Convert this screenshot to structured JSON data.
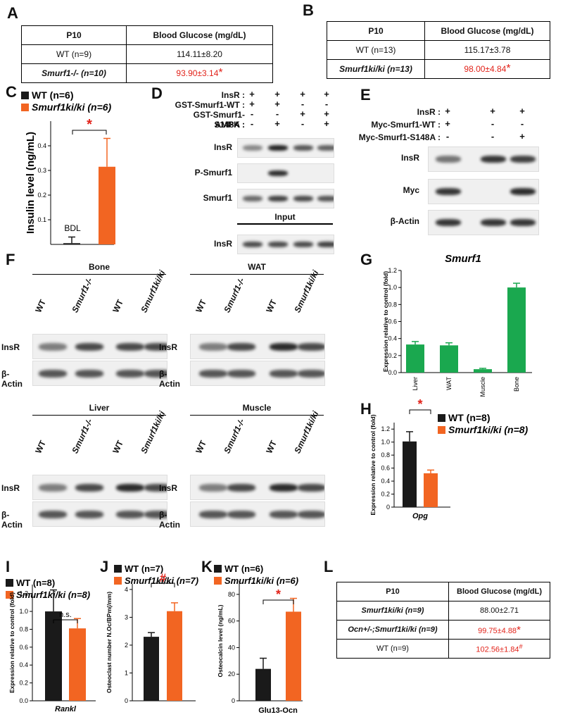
{
  "panels": {
    "A": "A",
    "B": "B",
    "C": "C",
    "D": "D",
    "E": "E",
    "F": "F",
    "G": "G",
    "H": "H",
    "I": "I",
    "J": "J",
    "K": "K",
    "L": "L"
  },
  "tableA": {
    "h1": "P10",
    "h2": "Blood Glucose (mg/dL)",
    "r1c1": "WT (n=9)",
    "r1c2": "114.11±8.20",
    "r2c1": "Smurf1-/- (n=10)",
    "r2c2": "93.90±3.14",
    "r2star": "*"
  },
  "tableB": {
    "h1": "P10",
    "h2": "Blood Glucose (mg/dL)",
    "r1c1": "WT (n=13)",
    "r1c2": "115.17±3.78",
    "r2c1": "Smurf1ki/ki (n=13)",
    "r2c2": "98.00±4.84",
    "r2star": "*"
  },
  "tableL": {
    "h1": "P10",
    "h2": "Blood Glucose (mg/dL)",
    "r1c1": "Smurf1ki/ki (n=9)",
    "r1c2": "88.00±2.71",
    "r2c1": "Ocn+/-;Smurf1ki/ki (n=9)",
    "r2c2": "99.75±4.88",
    "r2star": "*",
    "r3c1": "WT (n=9)",
    "r3c2": "102.56±1.84",
    "r3mark": "#"
  },
  "colors": {
    "wt": "#1a1a1a",
    "ki": "#f26522",
    "green": "#1aa84f",
    "red": "#e2231a"
  },
  "chart_data": [
    {
      "panel": "C",
      "type": "bar",
      "categories": [
        "WT (n=6)",
        "Smurf1ki/ki (n=6)"
      ],
      "values": [
        0.005,
        0.315
      ],
      "errors": [
        0.025,
        0.115
      ],
      "ylabel": "Insulin level (ng/mL)",
      "yticks": [
        0.1,
        0.2,
        0.3,
        0.4
      ],
      "ylim": [
        0,
        0.5
      ],
      "annotations": {
        "bdl": "BDL",
        "sig": "*"
      },
      "legend": [
        "WT (n=6)",
        "Smurf1ki/ki (n=6)"
      ]
    },
    {
      "panel": "G",
      "type": "bar",
      "title": "Smurf1",
      "categories": [
        "Liver",
        "WAT",
        "Muscle",
        "Bone"
      ],
      "values": [
        0.33,
        0.32,
        0.04,
        1.0
      ],
      "errors": [
        0.035,
        0.03,
        0.01,
        0.05
      ],
      "ylabel": "Expression relative to control (fold)",
      "yticks": [
        "0.0",
        "0.2",
        "0.4",
        "0.6",
        "0.8",
        "1.0",
        "1.2"
      ],
      "ylim": [
        0,
        1.2
      ]
    },
    {
      "panel": "H",
      "type": "bar",
      "xlabel": "Opg",
      "values": [
        1.01,
        0.52
      ],
      "errors": [
        0.15,
        0.05
      ],
      "ylabel": "Expression relative to control (fold)",
      "yticks": [
        "0",
        "0.2",
        "0.4",
        "0.6",
        "0.8",
        "1.0",
        "1.2"
      ],
      "ylim": [
        0,
        1.3
      ],
      "legend": [
        "WT (n=8)",
        "Smurf1ki/ki (n=8)"
      ],
      "sig": "*"
    },
    {
      "panel": "I",
      "type": "bar",
      "xlabel": "Rankl",
      "values": [
        1.0,
        0.81
      ],
      "errors": [
        0.24,
        0.11
      ],
      "ylabel": "Expression relative to control (fold)",
      "yticks": [
        "0.0",
        "0.2",
        "0.4",
        "0.6",
        "0.8",
        "1.0",
        "1.2"
      ],
      "ylim": [
        0,
        1.3
      ],
      "legend": [
        "WT (n=8)",
        "Smurf1ki/ki (n=8)"
      ],
      "sig": "n.s."
    },
    {
      "panel": "J",
      "type": "bar",
      "values": [
        2.3,
        3.22
      ],
      "errors": [
        0.15,
        0.3
      ],
      "ylabel": "Osteoclast number N.Oc/BPm(/mm)",
      "yticks": [
        "0",
        "1",
        "2",
        "3",
        "4"
      ],
      "ylim": [
        0,
        4.2
      ],
      "legend": [
        "WT (n=7)",
        "Smurf1ki/ki (n=7)"
      ],
      "sig": "#"
    },
    {
      "panel": "K",
      "type": "bar",
      "xlabel": "Glu13-Ocn",
      "values": [
        24,
        67
      ],
      "errors": [
        8,
        10
      ],
      "ylabel": "Osteocalcin level (ng/mL)",
      "yticks": [
        "0",
        "20",
        "40",
        "60",
        "80"
      ],
      "ylim": [
        0,
        90
      ],
      "legend": [
        "WT (n=6)",
        "Smurf1ki/ki (n=6)"
      ],
      "sig": "*"
    }
  ],
  "blotD": {
    "rows": [
      "InsR :",
      "GST-Smurf1-WT :",
      "GST-Smurf1-S148A :",
      "AMPK :"
    ],
    "signs": [
      [
        "+",
        "+",
        "+",
        "+"
      ],
      [
        "+",
        "+",
        "-",
        "-"
      ],
      [
        "-",
        "-",
        "+",
        "+"
      ],
      [
        "-",
        "+",
        "-",
        "+"
      ]
    ],
    "bands": [
      "InsR",
      "P-Smurf1",
      "Smurf1",
      "InsR"
    ],
    "input": "Input"
  },
  "blotE": {
    "rows": [
      "InsR :",
      "Myc-Smurf1-WT :",
      "Myc-Smurf1-S148A :"
    ],
    "signs": [
      [
        "+",
        "+",
        "+"
      ],
      [
        "+",
        "-",
        "-"
      ],
      [
        "-",
        "-",
        "+"
      ]
    ],
    "bands": [
      "InsR",
      "Myc",
      "β-Actin"
    ]
  },
  "blotF": {
    "tissues": [
      "Bone",
      "WAT",
      "Liver",
      "Muscle"
    ],
    "lanes": [
      "WT",
      "Smurf1-/-",
      "WT",
      "Smurf1ki/ki"
    ],
    "bands": [
      "InsR",
      "β-Actin"
    ]
  }
}
